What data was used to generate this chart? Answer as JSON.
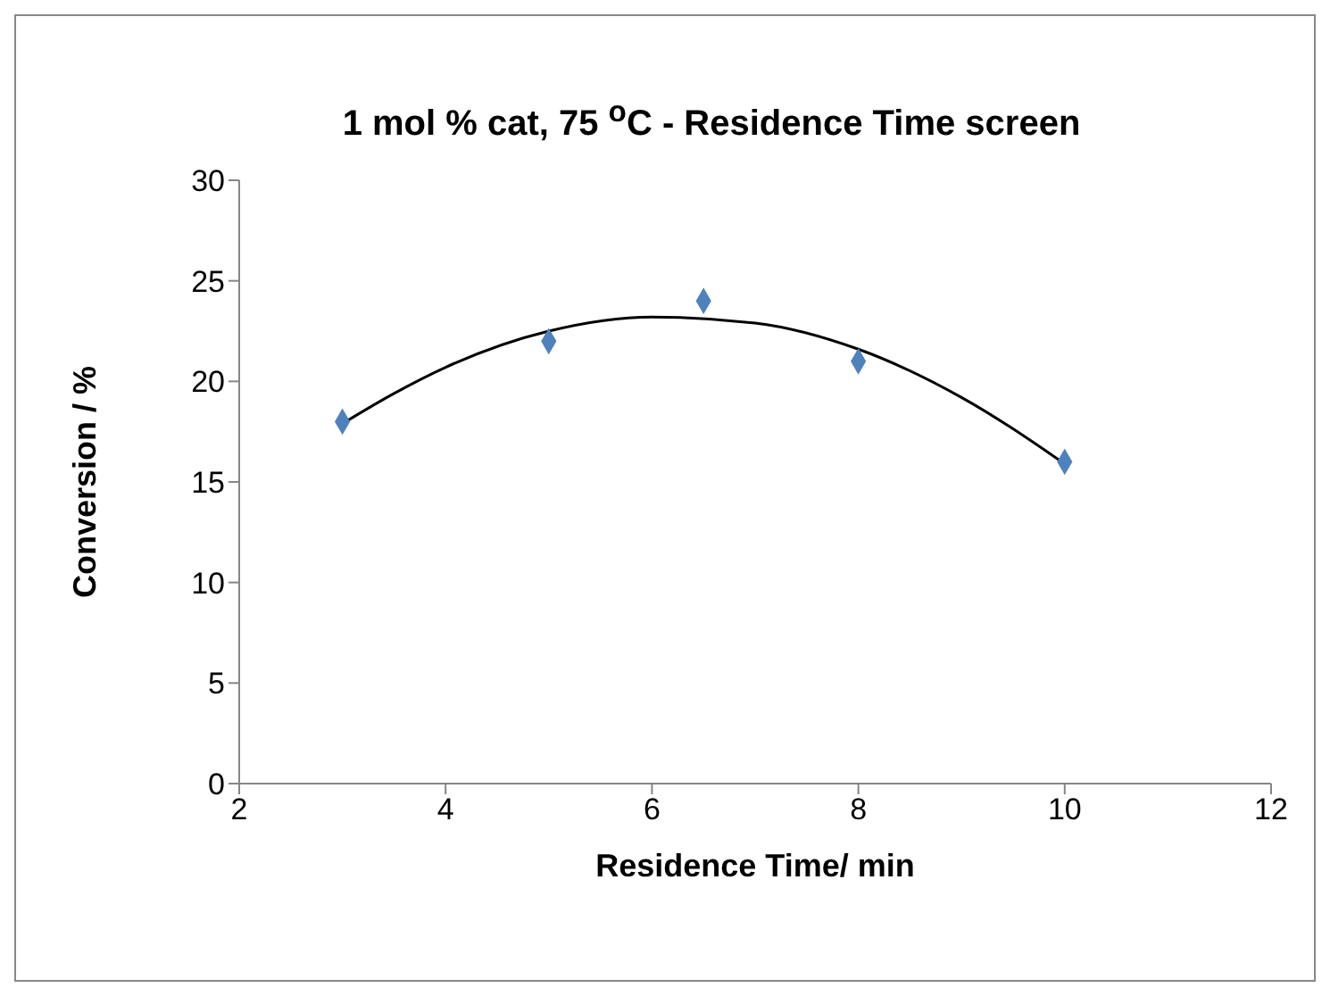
{
  "chart_data": {
    "type": "scatter",
    "title": "1 mol % cat, 75 $^{o}$C - Residence Time screen",
    "xlabel": "Residence Time/ min",
    "ylabel": "Conversion / %",
    "xlim": [
      2,
      12
    ],
    "xticks": [
      2,
      4,
      6,
      8,
      10,
      12
    ],
    "ylim": [
      0,
      30
    ],
    "yticks": [
      0,
      5,
      10,
      15,
      20,
      25,
      30
    ],
    "grid": false,
    "legend": false,
    "series": [
      {
        "marker": "diamond",
        "color": "#4f81bd",
        "x": [
          3,
          5,
          6.5,
          8,
          10
        ],
        "values": [
          18,
          22,
          24,
          21,
          16
        ]
      },
      {
        "type": "line",
        "marker": "none",
        "color": "#000000",
        "x": [
          3,
          3.5,
          4,
          5,
          6,
          7,
          8,
          9,
          10
        ],
        "values": [
          17.9,
          19.4,
          20.7,
          22.5,
          23.2,
          22.9,
          21.6,
          19.2,
          15.9
        ]
      }
    ]
  }
}
